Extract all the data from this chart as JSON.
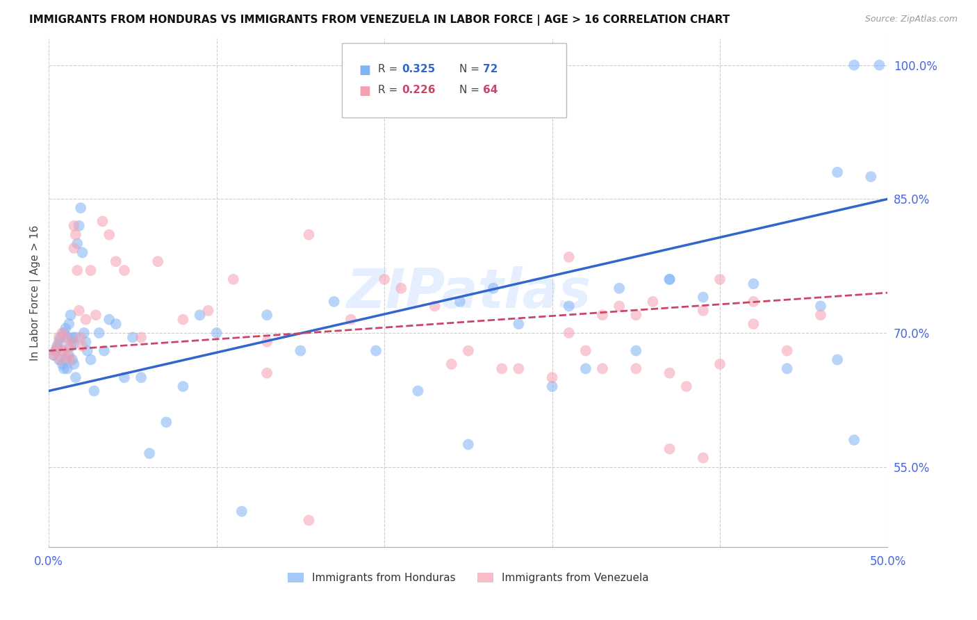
{
  "title": "IMMIGRANTS FROM HONDURAS VS IMMIGRANTS FROM VENEZUELA IN LABOR FORCE | AGE > 16 CORRELATION CHART",
  "source": "Source: ZipAtlas.com",
  "ylabel": "In Labor Force | Age > 16",
  "xlim": [
    0.0,
    0.5
  ],
  "ylim": [
    0.46,
    1.03
  ],
  "yticks": [
    0.55,
    0.7,
    0.85,
    1.0
  ],
  "ytick_labels": [
    "55.0%",
    "70.0%",
    "85.0%",
    "100.0%"
  ],
  "xticks": [
    0.0,
    0.1,
    0.2,
    0.3,
    0.4,
    0.5
  ],
  "xtick_labels": [
    "0.0%",
    "",
    "",
    "",
    "",
    "50.0%"
  ],
  "background_color": "#ffffff",
  "grid_color": "#cccccc",
  "blue_color": "#7fb3f5",
  "pink_color": "#f5a0b0",
  "blue_line_color": "#3366cc",
  "pink_line_color": "#cc4466",
  "legend_R1": "0.325",
  "legend_N1": "72",
  "legend_R2": "0.226",
  "legend_N2": "64",
  "watermark": "ZIPatlas",
  "legend_label1": "Immigrants from Honduras",
  "legend_label2": "Immigrants from Venezuela",
  "blue_line_x0": 0.0,
  "blue_line_x1": 0.5,
  "blue_line_y0": 0.635,
  "blue_line_y1": 0.85,
  "pink_line_x0": 0.0,
  "pink_line_x1": 0.5,
  "pink_line_y0": 0.68,
  "pink_line_y1": 0.745,
  "honduras_x": [
    0.003,
    0.004,
    0.005,
    0.006,
    0.006,
    0.007,
    0.008,
    0.008,
    0.009,
    0.009,
    0.01,
    0.01,
    0.011,
    0.011,
    0.012,
    0.012,
    0.013,
    0.013,
    0.014,
    0.014,
    0.015,
    0.015,
    0.016,
    0.016,
    0.017,
    0.018,
    0.019,
    0.02,
    0.021,
    0.022,
    0.023,
    0.025,
    0.027,
    0.03,
    0.033,
    0.036,
    0.04,
    0.045,
    0.05,
    0.055,
    0.06,
    0.07,
    0.08,
    0.09,
    0.1,
    0.115,
    0.13,
    0.15,
    0.17,
    0.195,
    0.22,
    0.25,
    0.28,
    0.31,
    0.34,
    0.37,
    0.3,
    0.32,
    0.35,
    0.37,
    0.39,
    0.42,
    0.44,
    0.46,
    0.47,
    0.48,
    0.49,
    0.495,
    0.245,
    0.265,
    0.47,
    0.48
  ],
  "honduras_y": [
    0.675,
    0.68,
    0.685,
    0.69,
    0.67,
    0.695,
    0.68,
    0.665,
    0.7,
    0.66,
    0.705,
    0.67,
    0.695,
    0.66,
    0.71,
    0.675,
    0.72,
    0.685,
    0.695,
    0.67,
    0.688,
    0.665,
    0.695,
    0.65,
    0.8,
    0.82,
    0.84,
    0.79,
    0.7,
    0.69,
    0.68,
    0.67,
    0.635,
    0.7,
    0.68,
    0.715,
    0.71,
    0.65,
    0.695,
    0.65,
    0.565,
    0.6,
    0.64,
    0.72,
    0.7,
    0.5,
    0.72,
    0.68,
    0.735,
    0.68,
    0.635,
    0.575,
    0.71,
    0.73,
    0.75,
    0.76,
    0.64,
    0.66,
    0.68,
    0.76,
    0.74,
    0.755,
    0.66,
    0.73,
    0.67,
    0.58,
    0.875,
    1.0,
    0.735,
    0.75,
    0.88,
    1.0
  ],
  "venezuela_x": [
    0.003,
    0.004,
    0.005,
    0.006,
    0.007,
    0.008,
    0.009,
    0.01,
    0.011,
    0.012,
    0.013,
    0.014,
    0.015,
    0.015,
    0.016,
    0.017,
    0.018,
    0.019,
    0.02,
    0.022,
    0.025,
    0.028,
    0.032,
    0.036,
    0.04,
    0.045,
    0.055,
    0.065,
    0.08,
    0.095,
    0.11,
    0.13,
    0.155,
    0.18,
    0.21,
    0.24,
    0.27,
    0.3,
    0.33,
    0.36,
    0.39,
    0.13,
    0.155,
    0.2,
    0.23,
    0.25,
    0.28,
    0.31,
    0.34,
    0.37,
    0.4,
    0.42,
    0.32,
    0.35,
    0.37,
    0.39,
    0.31,
    0.33,
    0.35,
    0.38,
    0.4,
    0.42,
    0.44,
    0.46
  ],
  "venezuela_y": [
    0.675,
    0.68,
    0.685,
    0.695,
    0.67,
    0.7,
    0.68,
    0.695,
    0.675,
    0.685,
    0.67,
    0.69,
    0.82,
    0.795,
    0.81,
    0.77,
    0.725,
    0.695,
    0.685,
    0.715,
    0.77,
    0.72,
    0.825,
    0.81,
    0.78,
    0.77,
    0.695,
    0.78,
    0.715,
    0.725,
    0.76,
    0.69,
    0.81,
    0.715,
    0.75,
    0.665,
    0.66,
    0.65,
    0.66,
    0.735,
    0.725,
    0.655,
    0.49,
    0.76,
    0.73,
    0.68,
    0.66,
    0.785,
    0.73,
    0.655,
    0.665,
    0.735,
    0.68,
    0.72,
    0.57,
    0.56,
    0.7,
    0.72,
    0.66,
    0.64,
    0.76,
    0.71,
    0.68,
    0.72
  ]
}
